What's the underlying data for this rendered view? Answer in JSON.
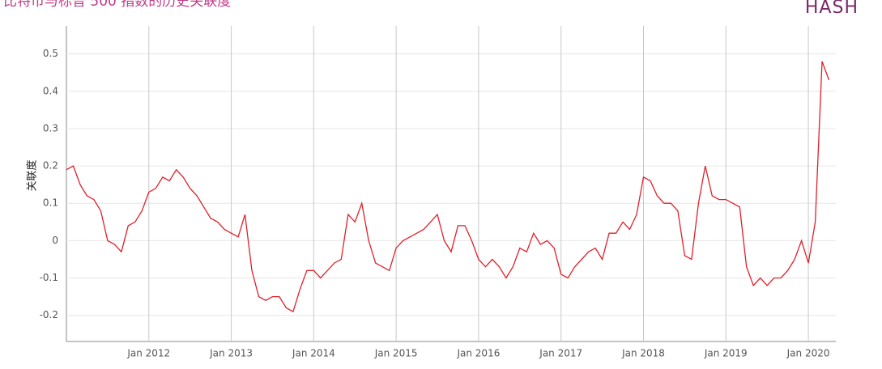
{
  "chart_data": {
    "type": "line",
    "title": "比特币与标普 500 指数的历史关联度",
    "logo": "HASH",
    "y_label": "关联度",
    "x": [
      "2011-01",
      "2011-02",
      "2011-03",
      "2011-04",
      "2011-05",
      "2011-06",
      "2011-07",
      "2011-08",
      "2011-09",
      "2011-10",
      "2011-11",
      "2011-12",
      "2012-01",
      "2012-02",
      "2012-03",
      "2012-04",
      "2012-05",
      "2012-06",
      "2012-07",
      "2012-08",
      "2012-09",
      "2012-10",
      "2012-11",
      "2012-12",
      "2013-01",
      "2013-02",
      "2013-03",
      "2013-04",
      "2013-05",
      "2013-06",
      "2013-07",
      "2013-08",
      "2013-09",
      "2013-10",
      "2013-11",
      "2013-12",
      "2014-01",
      "2014-02",
      "2014-03",
      "2014-04",
      "2014-05",
      "2014-06",
      "2014-07",
      "2014-08",
      "2014-09",
      "2014-10",
      "2014-11",
      "2014-12",
      "2015-01",
      "2015-02",
      "2015-03",
      "2015-04",
      "2015-05",
      "2015-06",
      "2015-07",
      "2015-08",
      "2015-09",
      "2015-10",
      "2015-11",
      "2015-12",
      "2016-01",
      "2016-02",
      "2016-03",
      "2016-04",
      "2016-05",
      "2016-06",
      "2016-07",
      "2016-08",
      "2016-09",
      "2016-10",
      "2016-11",
      "2016-12",
      "2017-01",
      "2017-02",
      "2017-03",
      "2017-04",
      "2017-05",
      "2017-06",
      "2017-07",
      "2017-08",
      "2017-09",
      "2017-10",
      "2017-11",
      "2017-12",
      "2018-01",
      "2018-02",
      "2018-03",
      "2018-04",
      "2018-05",
      "2018-06",
      "2018-07",
      "2018-08",
      "2018-09",
      "2018-10",
      "2018-11",
      "2018-12",
      "2019-01",
      "2019-02",
      "2019-03",
      "2019-04",
      "2019-05",
      "2019-06",
      "2019-07",
      "2019-08",
      "2019-09",
      "2019-10",
      "2019-11",
      "2019-12",
      "2020-01",
      "2020-02",
      "2020-03",
      "2020-04"
    ],
    "series": [
      {
        "name": "关联度",
        "color": "#e0202a",
        "values": [
          0.19,
          0.2,
          0.15,
          0.12,
          0.11,
          0.08,
          0.0,
          -0.01,
          -0.03,
          0.04,
          0.05,
          0.08,
          0.13,
          0.14,
          0.17,
          0.16,
          0.19,
          0.17,
          0.14,
          0.12,
          0.09,
          0.06,
          0.05,
          0.03,
          0.02,
          0.01,
          0.07,
          -0.08,
          -0.15,
          -0.16,
          -0.15,
          -0.15,
          -0.18,
          -0.19,
          -0.13,
          -0.08,
          -0.08,
          -0.1,
          -0.08,
          -0.06,
          -0.05,
          0.07,
          0.05,
          0.1,
          0.0,
          -0.06,
          -0.07,
          -0.08,
          -0.02,
          0.0,
          0.01,
          0.02,
          0.03,
          0.05,
          0.07,
          0.0,
          -0.03,
          0.04,
          0.04,
          0.0,
          -0.05,
          -0.07,
          -0.05,
          -0.07,
          -0.1,
          -0.07,
          -0.02,
          -0.03,
          0.02,
          -0.01,
          0.0,
          -0.02,
          -0.09,
          -0.1,
          -0.07,
          -0.05,
          -0.03,
          -0.02,
          -0.05,
          0.02,
          0.02,
          0.05,
          0.03,
          0.07,
          0.17,
          0.16,
          0.12,
          0.1,
          0.1,
          0.08,
          -0.04,
          -0.05,
          0.1,
          0.2,
          0.12,
          0.11,
          0.11,
          0.1,
          0.09,
          -0.07,
          -0.12,
          -0.1,
          -0.12,
          -0.1,
          -0.1,
          -0.08,
          -0.05,
          0.0,
          -0.06,
          0.05,
          0.48,
          0.43
        ]
      }
    ],
    "xlim": [
      "2011-01",
      "2020-04"
    ],
    "xticks": [
      {
        "value": "2012-01",
        "label": "Jan 2012"
      },
      {
        "value": "2013-01",
        "label": "Jan 2013"
      },
      {
        "value": "2014-01",
        "label": "Jan 2014"
      },
      {
        "value": "2015-01",
        "label": "Jan 2015"
      },
      {
        "value": "2016-01",
        "label": "Jan 2016"
      },
      {
        "value": "2017-01",
        "label": "Jan 2017"
      },
      {
        "value": "2018-01",
        "label": "Jan 2018"
      },
      {
        "value": "2019-01",
        "label": "Jan 2019"
      },
      {
        "value": "2020-01",
        "label": "Jan 2020"
      }
    ],
    "ylim": [
      -0.27,
      0.575
    ],
    "yticks": [
      -0.2,
      -0.1,
      0,
      0.1,
      0.2,
      0.3,
      0.4,
      0.5
    ],
    "grid": true
  }
}
